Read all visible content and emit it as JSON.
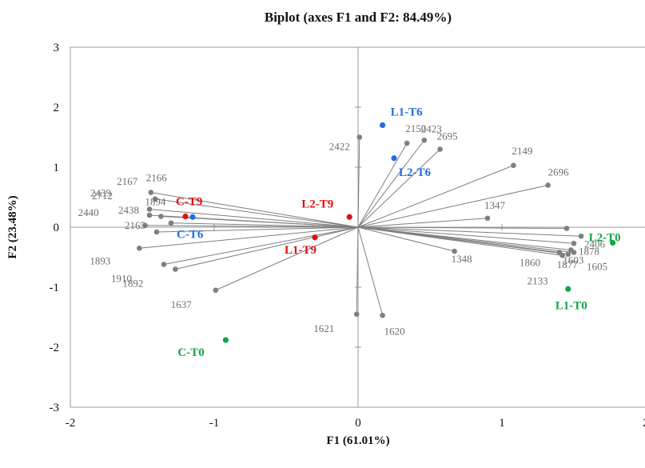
{
  "chart_data": {
    "type": "scatter",
    "title": "Biplot (axes F1 and F2: 84.49%)",
    "xlabel": "F1 (61.01%)",
    "ylabel": "F2 (23.48%)",
    "xlim": [
      -2,
      2
    ],
    "ylim": [
      -3,
      3
    ],
    "x_ticks": [
      -2,
      -1,
      0,
      1,
      2
    ],
    "y_ticks": [
      -3,
      -2,
      -1,
      0,
      1,
      2,
      3
    ],
    "x_tick_labels": [
      "-2",
      "-1",
      "0",
      "1",
      "2"
    ],
    "y_tick_labels": [
      "-3",
      "-2",
      "-1",
      "0",
      "1",
      "2",
      "3"
    ],
    "grid": false,
    "variable_color": "#7f7f7f",
    "variables": [
      {
        "name": "2422",
        "x": 0.01,
        "y": 1.5
      },
      {
        "name": "2150",
        "x": 0.34,
        "y": 1.4
      },
      {
        "name": "2423",
        "x": 0.46,
        "y": 1.45
      },
      {
        "name": "2695",
        "x": 0.57,
        "y": 1.3
      },
      {
        "name": "2149",
        "x": 1.08,
        "y": 1.03
      },
      {
        "name": "2696",
        "x": 1.32,
        "y": 0.7
      },
      {
        "name": "1347",
        "x": 0.9,
        "y": 0.15
      },
      {
        "name": "2406",
        "x": 1.55,
        "y": -0.15
      },
      {
        "name": "1878",
        "x": 1.5,
        "y": -0.27
      },
      {
        "name": "1603",
        "x": 1.48,
        "y": -0.38
      },
      {
        "name": "1605",
        "x": 1.5,
        "y": -0.42
      },
      {
        "name": "1877",
        "x": 1.46,
        "y": -0.45
      },
      {
        "name": "1860",
        "x": 1.4,
        "y": -0.42
      },
      {
        "name": "2133",
        "x": 1.42,
        "y": -0.47
      },
      {
        "name": "1348",
        "x": 0.67,
        "y": -0.4
      },
      {
        "name": "1620",
        "x": 0.17,
        "y": -1.47
      },
      {
        "name": "1621",
        "x": -0.01,
        "y": -1.45
      },
      {
        "name": "1637",
        "x": -0.99,
        "y": -1.05
      },
      {
        "name": "1892",
        "x": -1.27,
        "y": -0.7
      },
      {
        "name": "1910",
        "x": -1.35,
        "y": -0.62
      },
      {
        "name": "1893",
        "x": -1.52,
        "y": -0.35
      },
      {
        "name": "2165",
        "x": -1.4,
        "y": -0.08
      },
      {
        "name": "2440",
        "x": -1.48,
        "y": 0.03
      },
      {
        "name": "2438",
        "x": -1.3,
        "y": 0.07
      },
      {
        "name": "2712",
        "x": -1.45,
        "y": 0.2
      },
      {
        "name": "1894",
        "x": -1.37,
        "y": 0.18
      },
      {
        "name": "2439",
        "x": -1.45,
        "y": 0.3
      },
      {
        "name": "2167",
        "x": -1.41,
        "y": 0.47
      },
      {
        "name": "2166",
        "x": -1.44,
        "y": 0.58
      },
      {
        "name": "",
        "x": 1.45,
        "y": -0.02
      }
    ],
    "observations": [
      {
        "name": "L1-T6",
        "x": 0.17,
        "y": 1.7,
        "color": "#1f6fe0"
      },
      {
        "name": "L2-T6",
        "x": 0.25,
        "y": 1.15,
        "color": "#1f6fe0"
      },
      {
        "name": "C-T6",
        "x": -1.15,
        "y": 0.17,
        "color": "#1f6fe0"
      },
      {
        "name": "C-T9",
        "x": -1.2,
        "y": 0.18,
        "color": "#e01010"
      },
      {
        "name": "L2-T9",
        "x": -0.06,
        "y": 0.17,
        "color": "#e01010"
      },
      {
        "name": "L1-T9",
        "x": -0.3,
        "y": -0.17,
        "color": "#e01010"
      },
      {
        "name": "L2-T0",
        "x": 1.77,
        "y": -0.26,
        "color": "#16a34a"
      },
      {
        "name": "L1-T0",
        "x": 1.46,
        "y": -1.03,
        "color": "#16a34a"
      },
      {
        "name": "C-T0",
        "x": -0.92,
        "y": -1.88,
        "color": "#16a34a"
      }
    ]
  }
}
